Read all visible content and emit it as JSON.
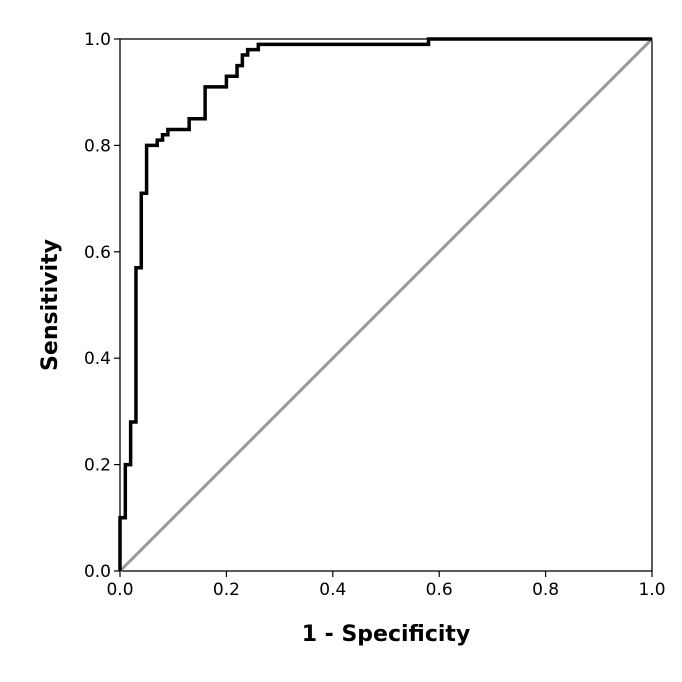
{
  "chart_data": {
    "type": "line",
    "xlabel": "1 - Specificity",
    "ylabel": "Sensitivity",
    "xlim": [
      0,
      1
    ],
    "ylim": [
      0,
      1
    ],
    "grid": false,
    "x_ticks": [
      "0.0",
      "0.2",
      "0.4",
      "0.6",
      "0.8",
      "1.0"
    ],
    "y_ticks": [
      "0.0",
      "0.2",
      "0.4",
      "0.6",
      "0.8",
      "1.0"
    ],
    "series": [
      {
        "style": "step",
        "color": "#000000",
        "points": [
          [
            0.0,
            0.0
          ],
          [
            0.0,
            0.1
          ],
          [
            0.01,
            0.1
          ],
          [
            0.01,
            0.2
          ],
          [
            0.02,
            0.2
          ],
          [
            0.02,
            0.28
          ],
          [
            0.03,
            0.28
          ],
          [
            0.03,
            0.57
          ],
          [
            0.04,
            0.57
          ],
          [
            0.04,
            0.71
          ],
          [
            0.05,
            0.71
          ],
          [
            0.05,
            0.8
          ],
          [
            0.07,
            0.8
          ],
          [
            0.07,
            0.81
          ],
          [
            0.08,
            0.81
          ],
          [
            0.08,
            0.82
          ],
          [
            0.09,
            0.82
          ],
          [
            0.09,
            0.83
          ],
          [
            0.13,
            0.83
          ],
          [
            0.13,
            0.85
          ],
          [
            0.16,
            0.85
          ],
          [
            0.16,
            0.91
          ],
          [
            0.2,
            0.91
          ],
          [
            0.2,
            0.93
          ],
          [
            0.22,
            0.93
          ],
          [
            0.22,
            0.95
          ],
          [
            0.23,
            0.95
          ],
          [
            0.23,
            0.97
          ],
          [
            0.24,
            0.97
          ],
          [
            0.24,
            0.98
          ],
          [
            0.26,
            0.98
          ],
          [
            0.26,
            0.99
          ],
          [
            0.58,
            0.99
          ],
          [
            0.58,
            1.0
          ],
          [
            1.0,
            1.0
          ]
        ]
      },
      {
        "style": "line",
        "color": "#999999",
        "points": [
          [
            0.0,
            0.0
          ],
          [
            1.0,
            1.0
          ]
        ]
      }
    ]
  }
}
